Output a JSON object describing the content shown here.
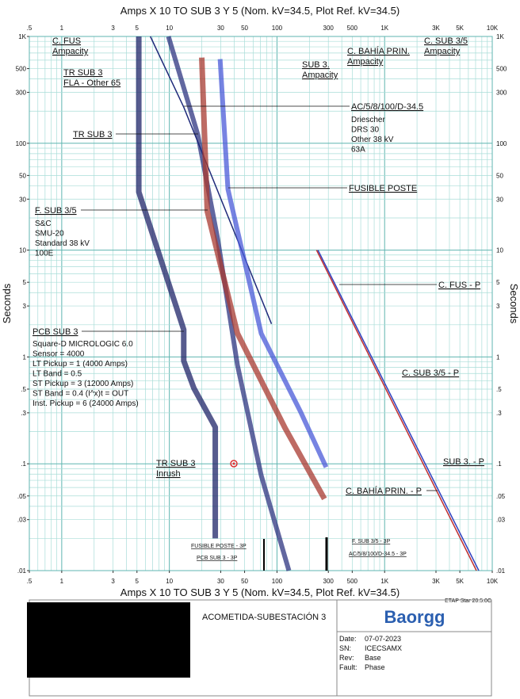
{
  "chart_data": {
    "type": "line",
    "title": "Amps  X  10   TO SUB 3 Y 5 (Nom. kV=34.5, Plot Ref. kV=34.5)",
    "ylabel": "Seconds",
    "log_x": true,
    "log_y": true,
    "grid": true,
    "xlim": [
      0.5,
      10000
    ],
    "ylim": [
      0.01,
      1000
    ],
    "xticks": [
      {
        "value": 0.5,
        "label": ".5"
      },
      1,
      3,
      5,
      10,
      30,
      50,
      100,
      300,
      500,
      {
        "value": 1000,
        "label": "1K"
      },
      {
        "value": 3000,
        "label": "3K"
      },
      {
        "value": 5000,
        "label": "5K"
      },
      {
        "value": 10000,
        "label": "10K"
      }
    ],
    "yticks": [
      {
        "value": 0.01,
        "label": ".01"
      },
      {
        "value": 0.03,
        "label": ".03"
      },
      {
        "value": 0.05,
        "label": ".05"
      },
      {
        "value": 0.1,
        "label": ".1"
      },
      {
        "value": 0.3,
        "label": ".3"
      },
      {
        "value": 0.5,
        "label": ".5"
      },
      1,
      3,
      5,
      10,
      30,
      50,
      100,
      300,
      500,
      {
        "value": 1000,
        "label": "1K"
      }
    ],
    "x_grid": [
      0.5,
      0.6,
      0.7,
      0.8,
      0.9,
      1,
      2,
      3,
      4,
      5,
      6,
      7,
      8,
      9,
      10,
      20,
      30,
      40,
      50,
      60,
      70,
      80,
      90,
      100,
      200,
      300,
      400,
      500,
      600,
      700,
      800,
      900,
      1000,
      2000,
      3000,
      4000,
      5000,
      6000,
      7000,
      8000,
      9000,
      10000
    ],
    "y_grid": [
      0.01,
      0.02,
      0.03,
      0.04,
      0.05,
      0.06,
      0.07,
      0.08,
      0.09,
      0.1,
      0.2,
      0.3,
      0.4,
      0.5,
      0.6,
      0.7,
      0.8,
      0.9,
      1,
      2,
      3,
      4,
      5,
      6,
      7,
      8,
      9,
      10,
      20,
      30,
      40,
      50,
      60,
      70,
      80,
      90,
      100,
      200,
      300,
      400,
      500,
      600,
      700,
      800,
      900,
      1000
    ],
    "series": [
      {
        "name": "PCB SUB 3",
        "color": "#1f2468",
        "x": [
          5.2,
          5.2,
          13.6,
          13.6,
          16.9,
          26.7,
          26.7
        ],
        "values": [
          1000,
          35,
          1.8,
          0.92,
          0.51,
          0.22,
          0.02
        ]
      },
      {
        "name": "TR SUB 3",
        "color": "#2e3480",
        "x": [
          9.8,
          18.4,
          28.1,
          42.9,
          71.3,
          129
        ],
        "values": [
          1000,
          120,
          12.8,
          0.84,
          0.078,
          0.01
        ]
      },
      {
        "name": "AC/5/8/100/D-34.5",
        "color": "#1f2a7a",
        "x": [
          6.66,
          13.6,
          88.9
        ],
        "values": [
          1000,
          218,
          2.04
        ]
      },
      {
        "name": "F. SUB 3/5",
        "color": "#a83a30",
        "x": [
          20,
          22.5,
          42.9,
          118.5,
          276
        ],
        "values": [
          634,
          23.1,
          1.66,
          0.217,
          0.047
        ]
      },
      {
        "name": "FUSIBLE POSTE",
        "color": "#4a5ad8",
        "x": [
          29.6,
          35,
          71.3,
          166,
          286
        ],
        "values": [
          614,
          37.2,
          1.66,
          0.305,
          0.093
        ]
      },
      {
        "name": "C. FUS - P",
        "color": "#3040c0",
        "x": [
          240,
          7500
        ],
        "values": [
          10,
          0.01
        ]
      },
      {
        "name": "C. BAHÍA PRIN. - P",
        "color": "#c03030",
        "x": [
          233,
          7130
        ],
        "values": [
          10,
          0.01
        ]
      }
    ],
    "annotations": [
      {
        "lines": [
          "C. FUS",
          "Ampacity"
        ]
      },
      {
        "lines": [
          "TR SUB 3",
          "FLA - Other 65"
        ]
      },
      {
        "lines": [
          "C. SUB 3/5",
          "Ampacity"
        ]
      },
      {
        "lines": [
          "C. BAHÍA PRIN.",
          "Ampacity"
        ]
      },
      {
        "lines": [
          "SUB 3.",
          "Ampacity"
        ]
      },
      {
        "lines": [
          "Driescher",
          "DRS 30",
          "Other  38 kV",
          "63A"
        ]
      },
      {
        "lines": [
          "S&C",
          "SMU-20",
          "Standard  38 kV",
          "100E"
        ]
      },
      {
        "lines": [
          "Square-D  MICROLOGIC 6.0",
          "Sensor = 4000",
          "LT Pickup = 1 (4000 Amps)",
          "LT Band = 0.5",
          "ST Pickup = 3 (12000 Amps)",
          "ST Band = 0.4  (I^x)t = OUT",
          "Inst. Pickup = 6 (24000 Amps)"
        ]
      },
      {
        "lines": [
          "TR SUB 3",
          "Inrush"
        ]
      },
      {
        "lines": [
          "FUSIBLE POSTE - 3P"
        ]
      },
      {
        "lines": [
          "PCB SUB 3 - 3P"
        ]
      },
      {
        "lines": [
          "F. SUB 3/5 - 3P"
        ]
      },
      {
        "lines": [
          "AC/5/8/100/D-34.5 - 3P"
        ]
      },
      {
        "lines": [
          "C. SUB 3/5 - P"
        ]
      },
      {
        "lines": [
          "SUB 3. - P"
        ]
      }
    ],
    "software": "ETAP Star 20.5.0C",
    "title_block": {
      "project": "ACOMETIDA-SUBESTACIÓN 3",
      "logo": "Baorgg",
      "fields": [
        [
          "Date:",
          "07-07-2023"
        ],
        [
          "SN:",
          "ICECSAMX"
        ],
        [
          "Rev:",
          "Base"
        ],
        [
          "Fault:",
          "Phase"
        ]
      ]
    }
  }
}
